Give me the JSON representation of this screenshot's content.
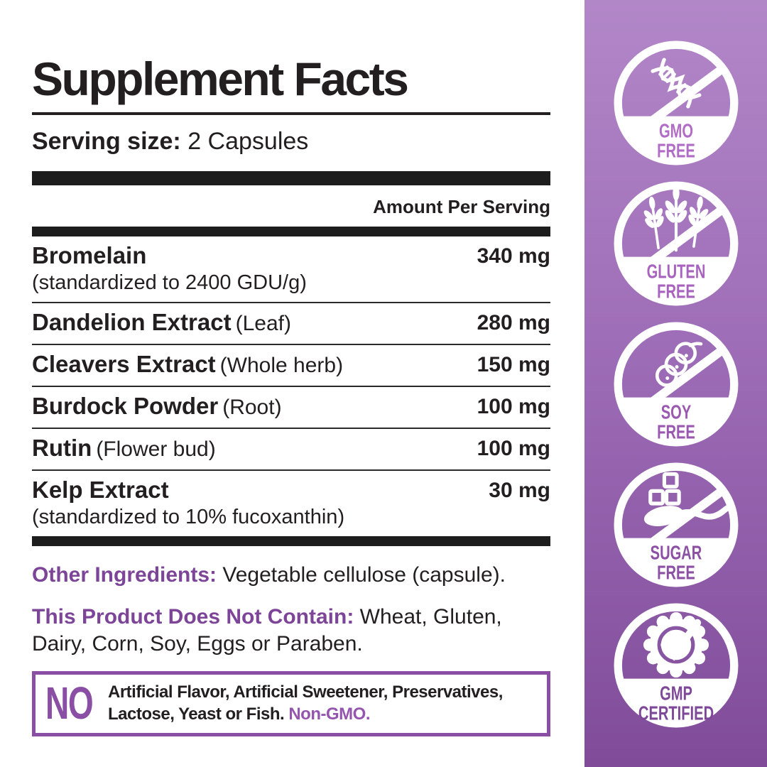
{
  "colors": {
    "text_black": "#231f20",
    "accent_purple": "#7d4598",
    "no_box_purple": "#8a4fa5",
    "non_gmo_purple": "#9455ae",
    "sidebar_gradient_top": "#b287c8",
    "sidebar_gradient_bottom": "#804c9a",
    "badge_white": "#ffffff"
  },
  "panel": {
    "title": "Supplement Facts",
    "serving_label": "Serving size:",
    "serving_value": "2 Capsules",
    "amount_header": "Amount Per Serving",
    "rows": [
      {
        "name": "Bromelain",
        "qualifier": "",
        "note": "(standardized to 2400 GDU/g)",
        "amount": "340 mg"
      },
      {
        "name": "Dandelion Extract",
        "qualifier": "(Leaf)",
        "note": "",
        "amount": "280 mg"
      },
      {
        "name": "Cleavers Extract",
        "qualifier": "(Whole herb)",
        "note": "",
        "amount": "150 mg"
      },
      {
        "name": "Burdock Powder",
        "qualifier": "(Root)",
        "note": "",
        "amount": "100 mg"
      },
      {
        "name": "Rutin",
        "qualifier": "(Flower bud)",
        "note": "",
        "amount": "100 mg"
      },
      {
        "name": "Kelp Extract",
        "qualifier": "",
        "note": "(standardized to 10% fucoxanthin)",
        "amount": "30 mg"
      }
    ],
    "other_ingredients_label": "Other Ingredients:",
    "other_ingredients_text": "Vegetable cellulose (capsule).",
    "not_contain_label": "This Product Does Not Contain:",
    "not_contain_text": "Wheat, Gluten, Dairy, Corn, Soy, Eggs or Paraben.",
    "no_box": {
      "label": "NO",
      "text": "Artificial Flavor, Artificial Sweetener, Preservatives, Lactose, Yeast or Fish.",
      "highlight": "Non-GMO."
    }
  },
  "sidebar": {
    "badges": [
      {
        "icon": "gmo-free-dna-icon",
        "line1": "GMO",
        "line2": "FREE",
        "crossed": true,
        "text_color": "#b16dc6"
      },
      {
        "icon": "gluten-free-wheat-icon",
        "line1": "GLUTEN",
        "line2": "FREE",
        "crossed": true,
        "text_color": "#a863be"
      },
      {
        "icon": "soy-free-soybean-icon",
        "line1": "SOY",
        "line2": "FREE",
        "crossed": true,
        "text_color": "#9a58b0"
      },
      {
        "icon": "sugar-free-spoon-icon",
        "line1": "SUGAR",
        "line2": "FREE",
        "crossed": true,
        "text_color": "#8c50a4"
      },
      {
        "icon": "gmp-certified-seal-icon",
        "line1": "GMP",
        "line2": "CERTIFIED",
        "crossed": false,
        "text_color": "#7e4899"
      }
    ]
  }
}
